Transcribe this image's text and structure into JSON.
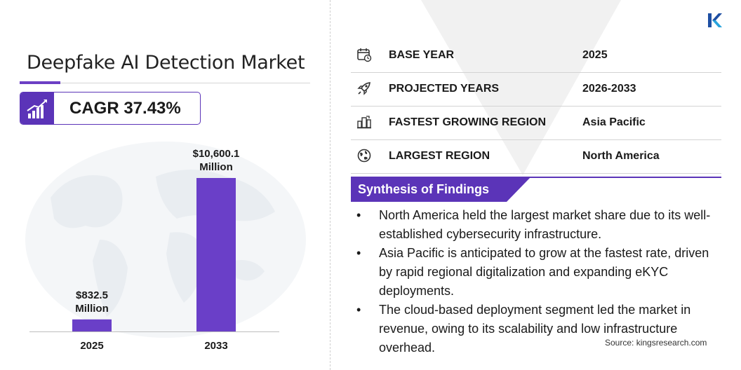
{
  "title": "Deepfake AI Detection Market",
  "cagr": {
    "text": "CAGR 37.43%",
    "icon": "growth-chart-icon"
  },
  "colors": {
    "accent": "#5b34b8",
    "bar": "#6a3fc8",
    "text": "#1a1a1a",
    "rule": "#d3d3d3"
  },
  "chart_data": {
    "type": "bar",
    "categories": [
      "2025",
      "2033"
    ],
    "values": [
      832.5,
      10600.1
    ],
    "value_labels": [
      "$832.5 Million",
      "$10,600.1 Million"
    ],
    "title": "",
    "xlabel": "",
    "ylabel": "",
    "grid": false
  },
  "info_rows": [
    {
      "icon": "calendar-icon",
      "label": "BASE YEAR",
      "value": "2025"
    },
    {
      "icon": "rocket-icon",
      "label": "PROJECTED YEARS",
      "value": "2026-2033"
    },
    {
      "icon": "city-icon",
      "label": "FASTEST GROWING REGION",
      "value": "Asia Pacific"
    },
    {
      "icon": "globe-icon",
      "label": "LARGEST REGION",
      "value": "North America"
    }
  ],
  "synthesis": {
    "title": "Synthesis of Findings",
    "bullets": [
      "North America held the largest market share due to its well-established cybersecurity infrastructure.",
      "Asia Pacific is anticipated to grow at the fastest rate, driven by rapid regional digitalization and expanding eKYC deployments.",
      "The cloud-based deployment segment led the market in revenue, owing to its scalability and low infrastructure overhead."
    ]
  },
  "source": "Source:  kingsresearch.com",
  "logo": {
    "icon": "kings-research-logo"
  }
}
